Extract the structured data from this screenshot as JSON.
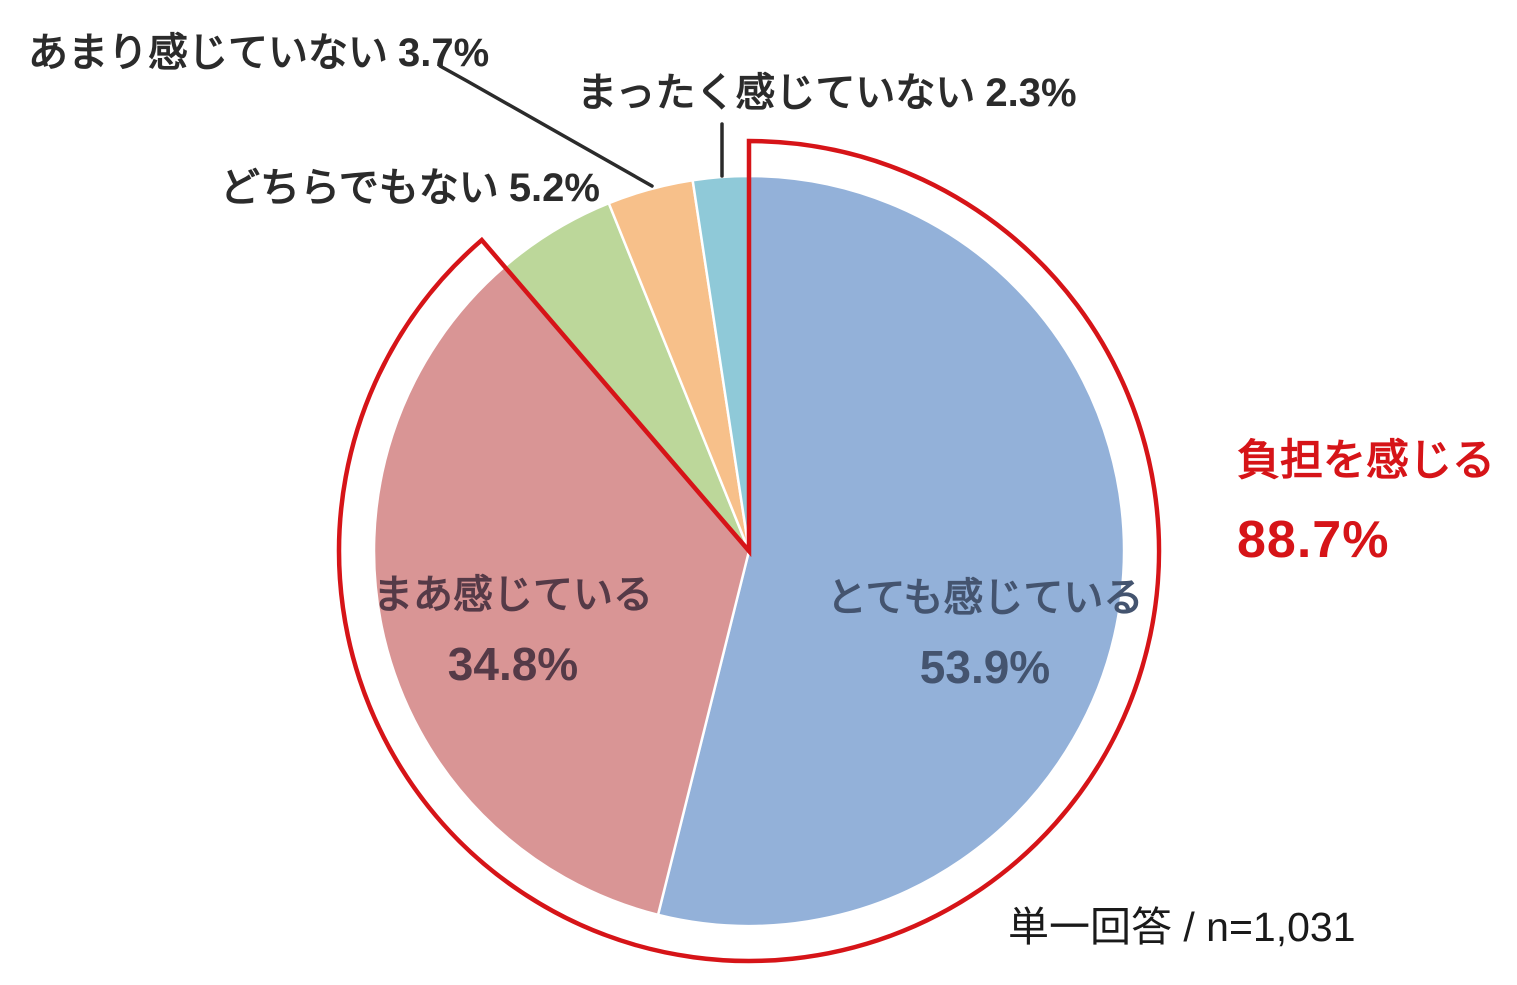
{
  "chart_data": {
    "type": "pie",
    "start_angle_deg": 0,
    "direction": "clockwise",
    "grid": false,
    "legend": "none",
    "segments": [
      {
        "label": "とても感じている",
        "value": 53.9,
        "pct": "53.9%",
        "color": "#93b1d9",
        "text_color": "#44546f",
        "label_placement": "inside"
      },
      {
        "label": "まあ感じている",
        "value": 34.8,
        "pct": "34.8%",
        "color": "#d99595",
        "text_color": "#553a47",
        "label_placement": "inside"
      },
      {
        "label": "どちらでもない",
        "value": 5.2,
        "pct": "5.2%",
        "color": "#bcd79a",
        "text_color": "#2b2b2b",
        "label_placement": "callout"
      },
      {
        "label": "あまり感じていない",
        "value": 3.7,
        "pct": "3.7%",
        "color": "#f7c08a",
        "text_color": "#2b2b2b",
        "label_placement": "callout-with-line"
      },
      {
        "label": "まったく感じていない",
        "value": 2.3,
        "pct": "2.3%",
        "color": "#8fc9d8",
        "text_color": "#2b2b2b",
        "label_placement": "callout-with-line"
      }
    ],
    "highlight": {
      "label": "負担を感じる",
      "pct": "88.7%",
      "value": 88.7,
      "covers": [
        "とても感じている",
        "まあ感じている"
      ],
      "color": "#d61418",
      "style": "red outline arc around first two slices, offset outside the pie"
    },
    "footnote": "単一回答 / n=1,031",
    "colors": {
      "background": "#ffffff",
      "slice_border": "#ffffff",
      "leader_line": "#2b2b2b",
      "callout_text": "#2b2b2b"
    }
  }
}
